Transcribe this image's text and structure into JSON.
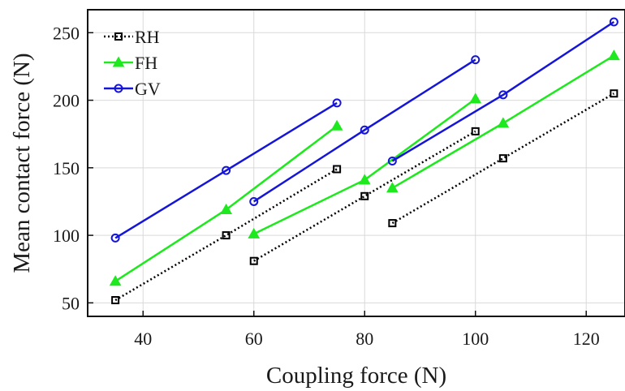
{
  "chart_data": {
    "type": "line",
    "xlabel": "Coupling force (N)",
    "ylabel": "Mean contact force (N)",
    "xlim": [
      30,
      127
    ],
    "ylim": [
      40,
      267
    ],
    "xticks": [
      40,
      60,
      80,
      100,
      120
    ],
    "yticks": [
      50,
      100,
      150,
      200,
      250
    ],
    "grid": true,
    "legend_position": "top-left",
    "series": [
      {
        "name": "RH",
        "color": "#000000",
        "line_style": "dotted",
        "marker": "square",
        "segments": [
          {
            "x": [
              35,
              55,
              75
            ],
            "y": [
              52,
              100,
              149
            ]
          },
          {
            "x": [
              60,
              80,
              100
            ],
            "y": [
              81,
              129,
              177
            ]
          },
          {
            "x": [
              85,
              105,
              125
            ],
            "y": [
              109,
              157,
              205
            ]
          }
        ]
      },
      {
        "name": "FH",
        "color": "#1ee81e",
        "line_style": "solid",
        "marker": "triangle",
        "segments": [
          {
            "x": [
              35,
              55,
              75
            ],
            "y": [
              66,
              119,
              181
            ]
          },
          {
            "x": [
              60,
              80,
              100
            ],
            "y": [
              101,
              141,
              201
            ]
          },
          {
            "x": [
              85,
              105,
              125
            ],
            "y": [
              135,
              183,
              233
            ]
          }
        ]
      },
      {
        "name": "GV",
        "color": "#1515d8",
        "line_style": "solid",
        "marker": "circle",
        "segments": [
          {
            "x": [
              35,
              55,
              75
            ],
            "y": [
              98,
              148,
              198
            ]
          },
          {
            "x": [
              60,
              80,
              100
            ],
            "y": [
              125,
              178,
              230
            ]
          },
          {
            "x": [
              85,
              105,
              125
            ],
            "y": [
              155,
              204,
              258
            ]
          }
        ]
      }
    ]
  }
}
